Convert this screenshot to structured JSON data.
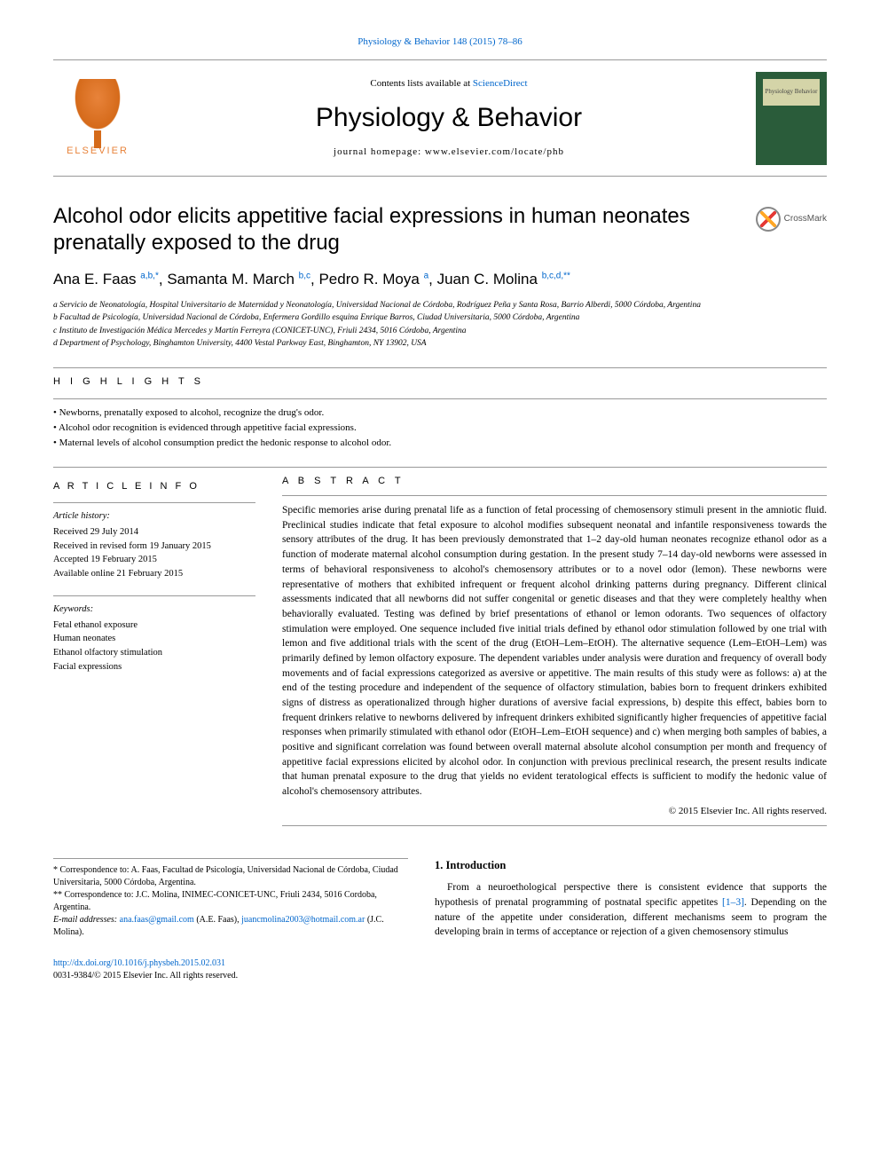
{
  "top_link": {
    "prefix": "",
    "journal": "Physiology & Behavior 148 (2015) 78–86"
  },
  "header": {
    "contents_prefix": "Contents lists available at ",
    "contents_link": "ScienceDirect",
    "journal": "Physiology & Behavior",
    "homepage": "journal homepage: www.elsevier.com/locate/phb",
    "elsevier_brand": "ELSEVIER",
    "cover_title": "Physiology Behavior"
  },
  "article": {
    "title": "Alcohol odor elicits appetitive facial expressions in human neonates prenatally exposed to the drug",
    "crossmark": "CrossMark",
    "authors_raw": [
      "Ana E. Faas ",
      "a,b,",
      "*",
      ", Samanta M. March ",
      "b,c",
      ", Pedro R. Moya ",
      "a",
      ", Juan C. Molina ",
      "b,c,d,",
      "**"
    ],
    "affiliations": [
      "a Servicio de Neonatología, Hospital Universitario de Maternidad y Neonatología, Universidad Nacional de Córdoba, Rodríguez Peña y Santa Rosa, Barrio Alberdi, 5000 Córdoba, Argentina",
      "b Facultad de Psicología, Universidad Nacional de Córdoba, Enfermera Gordillo esquina Enrique Barros, Ciudad Universitaria, 5000 Córdoba, Argentina",
      "c Instituto de Investigación Médica Mercedes y Martín Ferreyra (CONICET-UNC), Friuli 2434, 5016 Córdoba, Argentina",
      "d Department of Psychology, Binghamton University, 4400 Vestal Parkway East, Binghamton, NY 13902, USA"
    ]
  },
  "highlights": {
    "label": "H I G H L I G H T S",
    "items": [
      "Newborns, prenatally exposed to alcohol, recognize the drug's odor.",
      "Alcohol odor recognition is evidenced through appetitive facial expressions.",
      "Maternal levels of alcohol consumption predict the hedonic response to alcohol odor."
    ]
  },
  "article_info": {
    "label": "A R T I C L E   I N F O",
    "history_head": "Article history:",
    "history": [
      "Received 29 July 2014",
      "Received in revised form 19 January 2015",
      "Accepted 19 February 2015",
      "Available online 21 February 2015"
    ],
    "keywords_head": "Keywords:",
    "keywords": [
      "Fetal ethanol exposure",
      "Human neonates",
      "Ethanol olfactory stimulation",
      "Facial expressions"
    ]
  },
  "abstract": {
    "label": "A B S T R A C T",
    "text": "Specific memories arise during prenatal life as a function of fetal processing of chemosensory stimuli present in the amniotic fluid. Preclinical studies indicate that fetal exposure to alcohol modifies subsequent neonatal and infantile responsiveness towards the sensory attributes of the drug. It has been previously demonstrated that 1–2 day-old human neonates recognize ethanol odor as a function of moderate maternal alcohol consumption during gestation. In the present study 7–14 day-old newborns were assessed in terms of behavioral responsiveness to alcohol's chemosensory attributes or to a novel odor (lemon). These newborns were representative of mothers that exhibited infrequent or frequent alcohol drinking patterns during pregnancy. Different clinical assessments indicated that all newborns did not suffer congenital or genetic diseases and that they were completely healthy when behaviorally evaluated. Testing was defined by brief presentations of ethanol or lemon odorants. Two sequences of olfactory stimulation were employed. One sequence included five initial trials defined by ethanol odor stimulation followed by one trial with lemon and five additional trials with the scent of the drug (EtOH–Lem–EtOH). The alternative sequence (Lem–EtOH–Lem) was primarily defined by lemon olfactory exposure. The dependent variables under analysis were duration and frequency of overall body movements and of facial expressions categorized as aversive or appetitive. The main results of this study were as follows: a) at the end of the testing procedure and independent of the sequence of olfactory stimulation, babies born to frequent drinkers exhibited signs of distress as operationalized through higher durations of aversive facial expressions, b) despite this effect, babies born to frequent drinkers relative to newborns delivered by infrequent drinkers exhibited significantly higher frequencies of appetitive facial responses when primarily stimulated with ethanol odor (EtOH–Lem–EtOH sequence) and c) when merging both samples of babies, a positive and significant correlation was found between overall maternal absolute alcohol consumption per month and frequency of appetitive facial expressions elicited by alcohol odor. In conjunction with previous preclinical research, the present results indicate that human prenatal exposure to the drug that yields no evident teratological effects is sufficient to modify the hedonic value of alcohol's chemosensory attributes.",
    "copyright": "© 2015 Elsevier Inc. All rights reserved."
  },
  "intro": {
    "heading": "1. Introduction",
    "text_prefix": "From a neuroethological perspective there is consistent evidence that supports the hypothesis of prenatal programming of postnatal specific appetites ",
    "ref": "[1–3]",
    "text_suffix": ". Depending on the nature of the appetite under consideration, different mechanisms seem to program the developing brain in terms of acceptance or rejection of a given chemosensory stimulus"
  },
  "correspondence": {
    "c1": "* Correspondence to: A. Faas, Facultad de Psicología, Universidad Nacional de Córdoba, Ciudad Universitaria, 5000 Córdoba, Argentina.",
    "c2": "** Correspondence to: J.C. Molina, INIMEC-CONICET-UNC, Friuli 2434, 5016 Cordoba, Argentina.",
    "email_label": "E-mail addresses: ",
    "email1": "ana.faas@gmail.com",
    "email1_name": " (A.E. Faas), ",
    "email2": "juancmolina2003@hotmail.com.ar",
    "email2_name": " (J.C. Molina)."
  },
  "footer": {
    "doi": "http://dx.doi.org/10.1016/j.physbeh.2015.02.031",
    "issn": "0031-9384/© 2015 Elsevier Inc. All rights reserved."
  },
  "colors": {
    "link": "#0066cc",
    "elsevier_orange": "#E8833A",
    "cover_green": "#2a5c3a"
  }
}
